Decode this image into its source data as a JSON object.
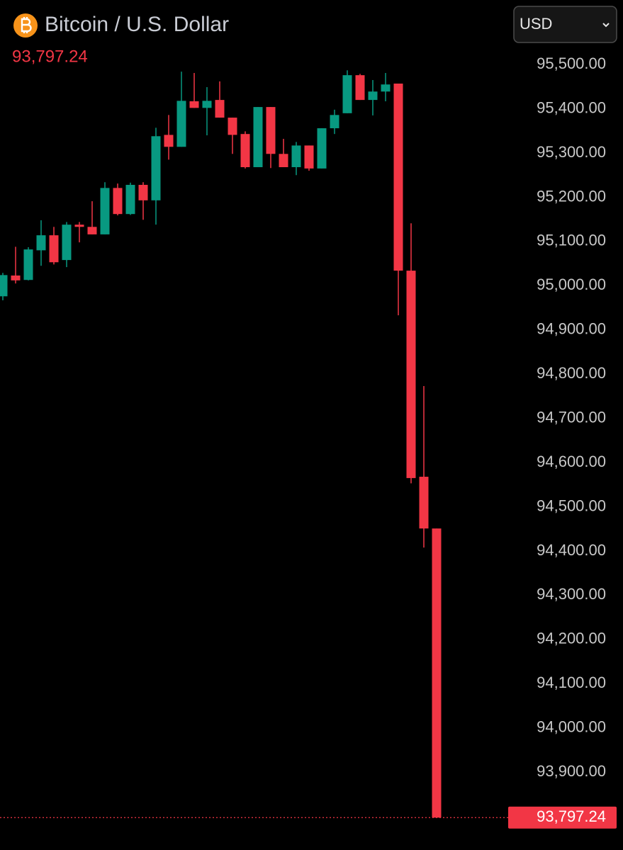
{
  "chart_data": {
    "type": "candlestick",
    "title": "Bitcoin / U.S. Dollar",
    "currency": "USD",
    "last_price": {
      "value": 93797.24,
      "label": "93,797.24"
    },
    "up_color": "#089981",
    "down_color": "#f23645",
    "categories": [
      null,
      null,
      null,
      null,
      null,
      null,
      null,
      null,
      null,
      null,
      null,
      null,
      null,
      null,
      null,
      null,
      null,
      null,
      null,
      null,
      null,
      null,
      null,
      null,
      null,
      null,
      null,
      null,
      null,
      null,
      null,
      null,
      null,
      null,
      null
    ],
    "open": [
      94976,
      95023,
      95013,
      95080,
      95114,
      95058,
      95138,
      95133,
      95116,
      95221,
      95162,
      95228,
      95193,
      95341,
      95314,
      95417,
      95402,
      95420,
      95380,
      95343,
      95268,
      95404,
      95298,
      95268,
      95317,
      95265,
      95356,
      95390,
      95476,
      95420,
      95439,
      95457,
      95034,
      94568,
      94451
    ],
    "high": [
      95029,
      95088,
      95087,
      95148,
      95133,
      95144,
      95144,
      95191,
      95234,
      95231,
      95233,
      95234,
      95357,
      95386,
      95484,
      95481,
      95449,
      95462,
      95380,
      95349,
      95404,
      95404,
      95332,
      95325,
      95317,
      95356,
      95398,
      95487,
      95479,
      95465,
      95481,
      95457,
      95141,
      94773,
      94451
    ],
    "low": [
      94967,
      95005,
      95012,
      95045,
      95048,
      95042,
      95098,
      95116,
      95116,
      95159,
      95160,
      95149,
      95138,
      95285,
      95314,
      95402,
      95340,
      95380,
      95298,
      95265,
      95268,
      95266,
      95268,
      95250,
      95260,
      95265,
      95343,
      95390,
      95420,
      95385,
      95417,
      94933,
      94553,
      94408,
      93797.24
    ],
    "close": [
      95024,
      95012,
      95082,
      95114,
      95053,
      95138,
      95133,
      95116,
      95221,
      95162,
      95228,
      95193,
      95338,
      95314,
      95418,
      95402,
      95418,
      95380,
      95341,
      95268,
      95404,
      95298,
      95268,
      95317,
      95265,
      95356,
      95386,
      95476,
      95420,
      95439,
      95455,
      95034,
      94565,
      94451,
      93797.24
    ],
    "ylim": [
      93724,
      95646
    ],
    "yticks": [
      {
        "value": 95500,
        "label": "95,500.00"
      },
      {
        "value": 95400,
        "label": "95,400.00"
      },
      {
        "value": 95300,
        "label": "95,300.00"
      },
      {
        "value": 95200,
        "label": "95,200.00"
      },
      {
        "value": 95100,
        "label": "95,100.00"
      },
      {
        "value": 95000,
        "label": "95,000.00"
      },
      {
        "value": 94900,
        "label": "94,900.00"
      },
      {
        "value": 94800,
        "label": "94,800.00"
      },
      {
        "value": 94700,
        "label": "94,700.00"
      },
      {
        "value": 94600,
        "label": "94,600.00"
      },
      {
        "value": 94500,
        "label": "94,500.00"
      },
      {
        "value": 94400,
        "label": "94,400.00"
      },
      {
        "value": 94300,
        "label": "94,300.00"
      },
      {
        "value": 94200,
        "label": "94,200.00"
      },
      {
        "value": 94100,
        "label": "94,100.00"
      },
      {
        "value": 94000,
        "label": "94,000.00"
      },
      {
        "value": 93900,
        "label": "93,900.00"
      }
    ]
  }
}
